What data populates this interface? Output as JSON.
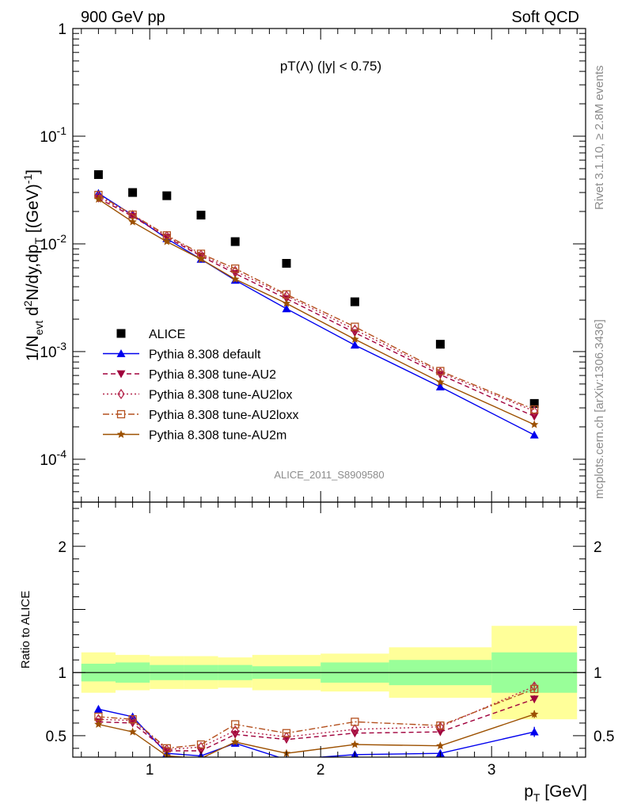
{
  "header": {
    "left": "900 GeV pp",
    "right": "Soft QCD"
  },
  "side": {
    "rivet": "Rivet 3.1.10, ≥ 2.8M events",
    "mcplots": "mcplots.cern.ch [arXiv:1306.3436]"
  },
  "chart_data": [
    {
      "type": "scatter",
      "panel": "main",
      "title": "pT(Λ) (|y| < 0.75)",
      "watermark": "ALICE_2011_S8909580",
      "xlabel": "p_T [GeV]",
      "ylabel": "1/N_evt d²N/dy,dp_T [(GeV)⁻¹]",
      "xlim": [
        0.55,
        3.55
      ],
      "ylim": [
        4e-05,
        1
      ],
      "yscale": "log",
      "x_ticks": [
        "1",
        "2",
        "3"
      ],
      "y_ticks": [
        "1",
        "10^-1",
        "10^-2",
        "10^-3",
        "10^-4"
      ],
      "legend_position": "lower-left",
      "series": [
        {
          "name": "ALICE",
          "color": "#000000",
          "style": "data",
          "x": [
            0.7,
            0.9,
            1.1,
            1.3,
            1.5,
            1.8,
            2.2,
            2.7,
            3.25
          ],
          "y": [
            0.044,
            0.03,
            0.028,
            0.0185,
            0.0105,
            0.0066,
            0.0029,
            0.00117,
            0.00033
          ]
        },
        {
          "name": "Pythia 8.308 default",
          "color": "#0000ee",
          "style": "solid",
          "marker": "triangle-up",
          "x": [
            0.7,
            0.9,
            1.1,
            1.3,
            1.5,
            1.8,
            2.2,
            2.7,
            3.25
          ],
          "y": [
            0.0295,
            0.0185,
            0.0112,
            0.0072,
            0.0046,
            0.0025,
            0.00115,
            0.00047,
            0.000168
          ]
        },
        {
          "name": "Pythia 8.308 tune-AU2",
          "color": "#a0003c",
          "style": "dashed",
          "marker": "triangle-down",
          "x": [
            0.7,
            0.9,
            1.1,
            1.3,
            1.5,
            1.8,
            2.2,
            2.7,
            3.25
          ],
          "y": [
            0.0265,
            0.018,
            0.0115,
            0.0077,
            0.0053,
            0.0031,
            0.0015,
            0.00061,
            0.00025
          ]
        },
        {
          "name": "Pythia 8.308 tune-AU2lox",
          "color": "#b4284e",
          "style": "dotted",
          "marker": "diamond-open",
          "x": [
            0.7,
            0.9,
            1.1,
            1.3,
            1.5,
            1.8,
            2.2,
            2.7,
            3.25
          ],
          "y": [
            0.0275,
            0.0185,
            0.0118,
            0.0079,
            0.0056,
            0.0033,
            0.0016,
            0.00064,
            0.00028
          ]
        },
        {
          "name": "Pythia 8.308 tune-AU2loxx",
          "color": "#b4501e",
          "style": "dashdot",
          "marker": "square-open",
          "x": [
            0.7,
            0.9,
            1.1,
            1.3,
            1.5,
            1.8,
            2.2,
            2.7,
            3.25
          ],
          "y": [
            0.0285,
            0.0187,
            0.012,
            0.0081,
            0.0059,
            0.0034,
            0.0017,
            0.00066,
            0.00029
          ]
        },
        {
          "name": "Pythia 8.308 tune-AU2m",
          "color": "#9c5000",
          "style": "solid",
          "marker": "star",
          "x": [
            0.7,
            0.9,
            1.1,
            1.3,
            1.5,
            1.8,
            2.2,
            2.7,
            3.25
          ],
          "y": [
            0.026,
            0.016,
            0.0105,
            0.0072,
            0.0047,
            0.0028,
            0.0013,
            0.00052,
            0.00021
          ]
        }
      ]
    },
    {
      "type": "scatter",
      "panel": "ratio",
      "ylabel": "Ratio to ALICE",
      "xlabel": "p_T [GeV]",
      "xlim": [
        0.55,
        3.55
      ],
      "ylim": [
        0.33,
        2.35
      ],
      "y_ticks": [
        "0.5",
        "1",
        "2"
      ],
      "x_ticks": [
        "1",
        "2",
        "3"
      ],
      "bands": {
        "edges": [
          0.6,
          0.8,
          1.0,
          1.2,
          1.4,
          1.6,
          2.0,
          2.4,
          3.0,
          3.5
        ],
        "inner_lo": [
          0.93,
          0.92,
          0.94,
          0.94,
          0.94,
          0.95,
          0.92,
          0.9,
          0.84
        ],
        "inner_hi": [
          1.07,
          1.08,
          1.06,
          1.06,
          1.06,
          1.05,
          1.08,
          1.1,
          1.16
        ],
        "outer_lo": [
          0.84,
          0.86,
          0.87,
          0.87,
          0.88,
          0.86,
          0.85,
          0.8,
          0.63
        ],
        "outer_hi": [
          1.16,
          1.14,
          1.13,
          1.13,
          1.12,
          1.14,
          1.15,
          1.2,
          1.37
        ],
        "inner_color": "#99ff99",
        "outer_color": "#ffff99"
      },
      "series": [
        {
          "name": "Pythia 8.308 default",
          "color": "#0000ee",
          "style": "solid",
          "marker": "triangle-up",
          "x": [
            0.7,
            0.9,
            1.1,
            1.3,
            1.5,
            1.8,
            2.2,
            2.7,
            3.25
          ],
          "y": [
            0.71,
            0.65,
            0.36,
            0.34,
            0.44,
            0.31,
            0.35,
            0.36,
            0.53
          ],
          "err": [
            0,
            0,
            0,
            0,
            0,
            0,
            0,
            0,
            0.04
          ]
        },
        {
          "name": "Pythia 8.308 tune-AU2",
          "color": "#a0003c",
          "style": "dashed",
          "marker": "triangle-down",
          "x": [
            0.7,
            0.9,
            1.1,
            1.3,
            1.5,
            1.8,
            2.2,
            2.7,
            3.25
          ],
          "y": [
            0.61,
            0.6,
            0.38,
            0.38,
            0.51,
            0.47,
            0.52,
            0.53,
            0.79
          ],
          "err": [
            0,
            0,
            0,
            0,
            0,
            0,
            0,
            0.02,
            0.03
          ]
        },
        {
          "name": "Pythia 8.308 tune-AU2lox",
          "color": "#b4284e",
          "style": "dotted",
          "marker": "diamond-open",
          "x": [
            0.7,
            0.9,
            1.1,
            1.3,
            1.5,
            1.8,
            2.2,
            2.7,
            3.25
          ],
          "y": [
            0.63,
            0.62,
            0.39,
            0.41,
            0.54,
            0.49,
            0.55,
            0.57,
            0.89
          ],
          "err": [
            0,
            0,
            0,
            0,
            0,
            0,
            0,
            0.02,
            0.03
          ]
        },
        {
          "name": "Pythia 8.308 tune-AU2loxx",
          "color": "#b4501e",
          "style": "dashdot",
          "marker": "square-open",
          "x": [
            0.7,
            0.9,
            1.1,
            1.3,
            1.5,
            1.8,
            2.2,
            2.7,
            3.25
          ],
          "y": [
            0.65,
            0.63,
            0.4,
            0.43,
            0.59,
            0.52,
            0.61,
            0.58,
            0.87
          ],
          "err": [
            0,
            0,
            0,
            0,
            0,
            0,
            0,
            0.02,
            0.03
          ]
        },
        {
          "name": "Pythia 8.308 tune-AU2m",
          "color": "#9c5000",
          "style": "solid",
          "marker": "star",
          "x": [
            0.7,
            0.9,
            1.1,
            1.3,
            1.5,
            1.8,
            2.2,
            2.7,
            3.25
          ],
          "y": [
            0.59,
            0.53,
            0.34,
            0.32,
            0.45,
            0.36,
            0.43,
            0.42,
            0.67
          ],
          "err": [
            0,
            0,
            0,
            0,
            0,
            0,
            0,
            0.02,
            0.03
          ]
        }
      ]
    }
  ]
}
